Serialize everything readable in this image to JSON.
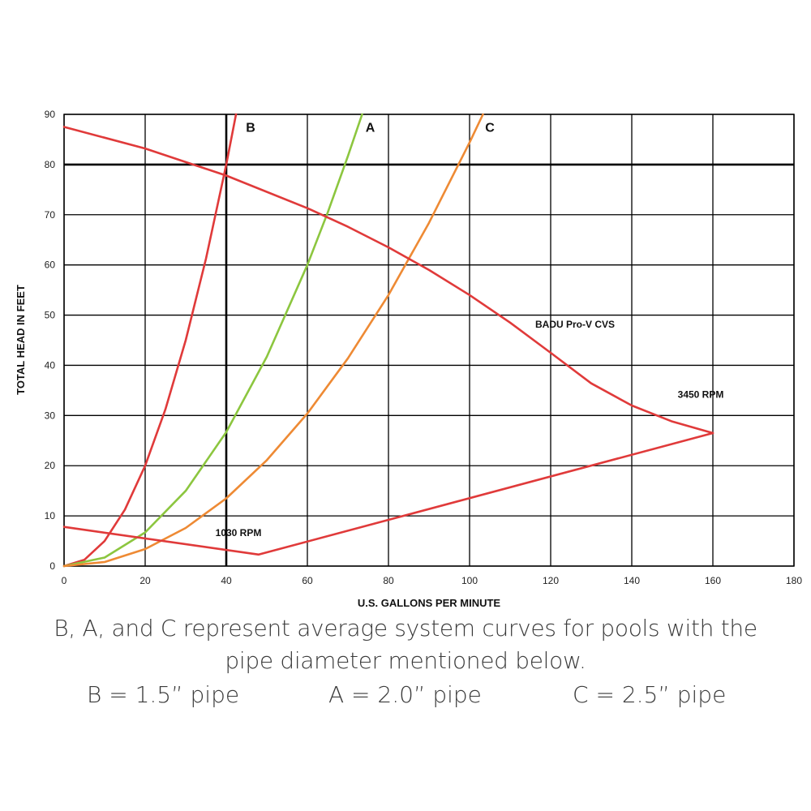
{
  "chart_data": {
    "type": "line",
    "xlabel": "U.S. GALLONS PER MINUTE",
    "ylabel": "TOTAL HEAD IN FEET",
    "xlim": [
      0,
      180
    ],
    "ylim": [
      0,
      90
    ],
    "x_ticks": [
      "0",
      "20",
      "40",
      "60",
      "80",
      "100",
      "120",
      "140",
      "160",
      "180"
    ],
    "y_ticks": [
      "0",
      "10",
      "20",
      "30",
      "40",
      "50",
      "60",
      "70",
      "80",
      "90"
    ],
    "grid": true,
    "emphasized_gridlines": {
      "x": 40,
      "y": 80
    },
    "series": [
      {
        "name": "B",
        "color": "#e03a3a",
        "x": [
          0,
          5,
          10,
          15,
          20,
          25,
          30,
          35,
          40,
          42.4
        ],
        "y": [
          0,
          1.25,
          5,
          11.25,
          20,
          31.25,
          45,
          61.25,
          80,
          90
        ]
      },
      {
        "name": "A",
        "color": "#8cc63f",
        "x": [
          0,
          10,
          20,
          30,
          40,
          50,
          60,
          65,
          70,
          73.5
        ],
        "y": [
          0,
          1.7,
          6.7,
          15,
          26.7,
          41.7,
          60,
          70.4,
          81.7,
          90
        ]
      },
      {
        "name": "C",
        "color": "#ee8a34",
        "x": [
          0,
          10,
          20,
          30,
          40,
          50,
          60,
          70,
          80,
          90,
          100,
          103.3
        ],
        "y": [
          0,
          0.8,
          3.4,
          7.6,
          13.5,
          21.1,
          30.4,
          41.4,
          54,
          68.4,
          84.4,
          90
        ]
      },
      {
        "name": "BADU Pro-V CVS",
        "color": "#e03a3a",
        "x": [
          0,
          20,
          40,
          60,
          70,
          80,
          90,
          100,
          110,
          120,
          130,
          140,
          150,
          160
        ],
        "y": [
          87.5,
          83.2,
          77.8,
          71.3,
          67.6,
          63.5,
          59.0,
          54.0,
          48.5,
          42.5,
          36.4,
          32.0,
          28.8,
          26.5
        ]
      },
      {
        "name": "",
        "color": "#e03a3a",
        "x": [
          160,
          48,
          0
        ],
        "y": [
          26.5,
          2.3,
          7.8
        ]
      }
    ],
    "annotations": [
      {
        "text": "B",
        "x": 46,
        "y": 86.5
      },
      {
        "text": "A",
        "x": 75.5,
        "y": 86.5
      },
      {
        "text": "C",
        "x": 105,
        "y": 86.5
      },
      {
        "text": "BADU Pro-V CVS",
        "x": 126,
        "y": 47.5
      },
      {
        "text": "3450 RPM",
        "x": 157,
        "y": 33.5
      },
      {
        "text": "1030 RPM",
        "x": 43,
        "y": 6
      }
    ]
  },
  "caption": {
    "line1": "B, A, and C represent average system curves for pools with the",
    "line2": "pipe diameter mentioned below.",
    "b_pipe": "B = 1.5” pipe",
    "a_pipe": "A = 2.0” pipe",
    "c_pipe": "C = 2.5” pipe"
  }
}
